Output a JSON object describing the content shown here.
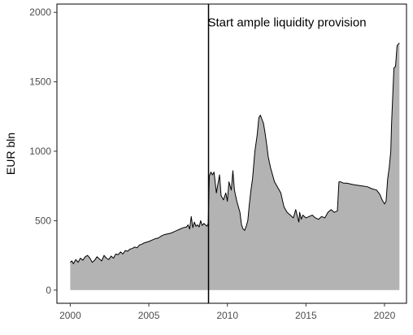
{
  "chart_data": {
    "type": "area",
    "title": "",
    "xlabel": "",
    "ylabel": "EUR bln",
    "xlim": [
      1999.15,
      2021.4
    ],
    "ylim": [
      -95,
      2060
    ],
    "x_ticks": [
      2000,
      2005,
      2010,
      2015,
      2020
    ],
    "x_tick_labels": [
      "2000",
      "2005",
      "2010",
      "2015",
      "2020"
    ],
    "y_ticks": [
      0,
      500,
      1000,
      1500,
      2000
    ],
    "y_tick_labels": [
      "0",
      "500",
      "1000",
      "1500",
      "2000"
    ],
    "grid": false,
    "legend": "none",
    "fill_color": "#b3b3b3",
    "line_color": "#000000",
    "vline": {
      "x": 2008.8,
      "label": "Start ample liquidity provision"
    },
    "series": [
      {
        "x": [
          2000.0,
          2000.1,
          2000.2,
          2000.35,
          2000.5,
          2000.65,
          2000.8,
          2000.95,
          2001.1,
          2001.25,
          2001.4,
          2001.55,
          2001.7,
          2001.85,
          2002.0,
          2002.15,
          2002.3,
          2002.45,
          2002.6,
          2002.75,
          2002.9,
          2003.05,
          2003.2,
          2003.35,
          2003.5,
          2003.65,
          2003.8,
          2003.95,
          2004.1,
          2004.25,
          2004.4,
          2004.55,
          2004.7,
          2004.85,
          2005.0,
          2005.2,
          2005.4,
          2005.6,
          2005.8,
          2006.0,
          2006.2,
          2006.4,
          2006.6,
          2006.8,
          2007.0,
          2007.2,
          2007.4,
          2007.5,
          2007.6,
          2007.7,
          2007.8,
          2007.9,
          2008.0,
          2008.1,
          2008.2,
          2008.3,
          2008.4,
          2008.5,
          2008.6,
          2008.7,
          2008.78,
          2008.85,
          2008.95,
          2009.05,
          2009.15,
          2009.3,
          2009.5,
          2009.6,
          2009.75,
          2009.9,
          2010.0,
          2010.1,
          2010.25,
          2010.35,
          2010.45,
          2010.6,
          2010.7,
          2010.8,
          2010.9,
          2011.0,
          2011.1,
          2011.2,
          2011.3,
          2011.4,
          2011.5,
          2011.6,
          2011.75,
          2011.9,
          2012.0,
          2012.1,
          2012.2,
          2012.3,
          2012.4,
          2012.5,
          2012.6,
          2012.75,
          2012.9,
          2013.0,
          2013.2,
          2013.4,
          2013.6,
          2013.8,
          2014.0,
          2014.2,
          2014.35,
          2014.5,
          2014.55,
          2014.6,
          2014.7,
          2014.8,
          2015.0,
          2015.2,
          2015.4,
          2015.6,
          2015.8,
          2016.0,
          2016.2,
          2016.4,
          2016.6,
          2016.8,
          2017.0,
          2017.1,
          2017.2,
          2017.4,
          2017.6,
          2017.8,
          2018.0,
          2018.3,
          2018.6,
          2018.9,
          2019.2,
          2019.5,
          2019.7,
          2019.85,
          2019.95,
          2020.0,
          2020.1,
          2020.2,
          2020.3,
          2020.4,
          2020.45,
          2020.6,
          2020.7,
          2020.8,
          2020.95
        ],
        "y": [
          200,
          210,
          190,
          220,
          200,
          230,
          215,
          240,
          250,
          230,
          200,
          215,
          240,
          225,
          210,
          250,
          230,
          220,
          245,
          230,
          260,
          255,
          275,
          260,
          285,
          280,
          295,
          300,
          310,
          305,
          325,
          330,
          340,
          345,
          350,
          360,
          370,
          375,
          390,
          400,
          405,
          410,
          420,
          430,
          440,
          450,
          455,
          470,
          440,
          530,
          450,
          490,
          460,
          470,
          455,
          500,
          465,
          480,
          470,
          460,
          480,
          820,
          850,
          830,
          850,
          700,
          830,
          680,
          650,
          700,
          640,
          780,
          720,
          860,
          720,
          640,
          600,
          560,
          470,
          440,
          430,
          460,
          500,
          620,
          720,
          800,
          1000,
          1120,
          1240,
          1260,
          1230,
          1200,
          1130,
          1050,
          960,
          880,
          820,
          780,
          740,
          700,
          600,
          560,
          540,
          520,
          580,
          510,
          490,
          560,
          510,
          540,
          520,
          530,
          540,
          520,
          510,
          530,
          520,
          560,
          580,
          560,
          570,
          780,
          780,
          770,
          770,
          765,
          760,
          755,
          750,
          745,
          730,
          720,
          690,
          650,
          630,
          620,
          640,
          800,
          880,
          1000,
          1200,
          1600,
          1610,
          1760,
          1780
        ]
      }
    ]
  }
}
